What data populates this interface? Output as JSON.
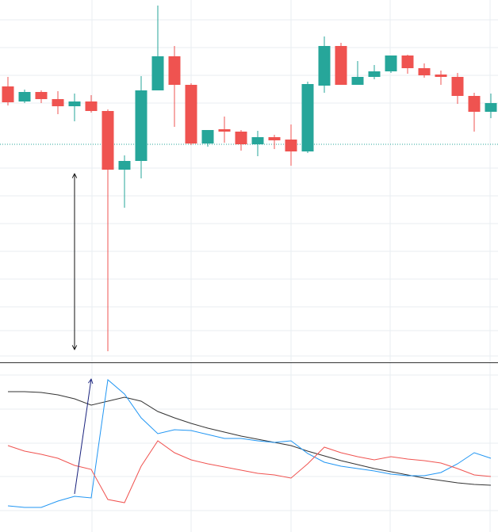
{
  "chart_data": [
    {
      "type": "candlestick",
      "ylim": [
        0,
        457
      ],
      "up_color": "#26a69a",
      "down_color": "#ef5350",
      "price_line": 275,
      "open": [
        348,
        329,
        341,
        332,
        323,
        329,
        317,
        243,
        254,
        343,
        386,
        350,
        276,
        294,
        291,
        275,
        284,
        281,
        266,
        349,
        399,
        350,
        360,
        367,
        387,
        371,
        363,
        360,
        336,
        316
      ],
      "high": [
        360,
        344,
        343,
        342,
        339,
        337,
        319,
        261,
        361,
        450,
        399,
        352,
        293,
        310,
        293,
        292,
        287,
        300,
        354,
        411,
        403,
        380,
        375,
        387,
        388,
        377,
        368,
        365,
        340,
        339
      ],
      "low": [
        324,
        327,
        327,
        313,
        304,
        315,
        14,
        195,
        232,
        343,
        297,
        274,
        272,
        277,
        267,
        260,
        269,
        248,
        264,
        340,
        350,
        350,
        357,
        365,
        364,
        359,
        350,
        326,
        291,
        308
      ],
      "close": [
        328,
        341,
        332,
        323,
        329,
        317,
        243,
        254,
        343,
        386,
        350,
        276,
        293,
        291,
        275,
        284,
        280,
        266,
        351,
        399,
        350,
        360,
        367,
        387,
        371,
        362,
        360,
        336,
        316,
        327
      ]
    },
    {
      "type": "line",
      "ylim": [
        0,
        213
      ],
      "series": [
        {
          "color": "#333333",
          "values": [
            177,
            177,
            176,
            173,
            168,
            160,
            165,
            170,
            165,
            152,
            144,
            137,
            131,
            126,
            121,
            117,
            113,
            109,
            102,
            96,
            90,
            85,
            80,
            76,
            72,
            68,
            65,
            62,
            60,
            59
          ]
        },
        {
          "color": "#2196f3",
          "values": [
            33,
            31,
            31,
            39,
            45,
            43,
            192,
            174,
            144,
            124,
            129,
            128,
            123,
            118,
            118,
            115,
            113,
            115,
            99,
            88,
            83,
            80,
            77,
            73,
            71,
            71,
            75,
            86,
            100,
            93
          ]
        },
        {
          "color": "#f05350",
          "values": [
            109,
            102,
            98,
            93,
            84,
            79,
            41,
            37,
            83,
            115,
            100,
            91,
            86,
            82,
            78,
            74,
            72,
            68,
            86,
            107,
            100,
            95,
            91,
            95,
            92,
            90,
            87,
            80,
            72,
            70
          ]
        }
      ]
    }
  ]
}
